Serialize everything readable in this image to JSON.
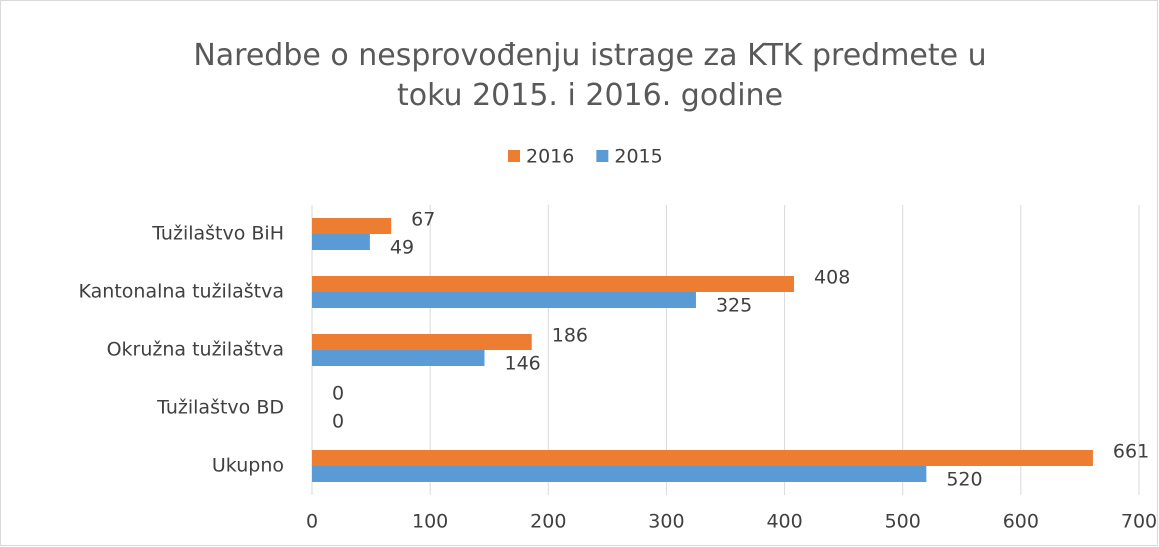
{
  "chart_data": {
    "type": "bar",
    "orientation": "horizontal",
    "title": "Naredbe o nesprovođenju istrage za KTK predmete u toku 2015. i 2016. godine",
    "categories": [
      "Tužilaštvo BiH",
      "Kantonalna tužilaštva",
      "Okružna tužilaštva",
      "Tužilaštvo BD",
      "Ukupno"
    ],
    "series": [
      {
        "name": "2016",
        "color": "#ed7d31",
        "values": [
          67,
          408,
          186,
          0,
          661
        ]
      },
      {
        "name": "2015",
        "color": "#5b9bd5",
        "values": [
          49,
          325,
          146,
          0,
          520
        ]
      }
    ],
    "xlim": [
      0,
      700
    ],
    "xticks": [
      0,
      100,
      200,
      300,
      400,
      500,
      600,
      700
    ],
    "grid": true,
    "legend": "top"
  }
}
